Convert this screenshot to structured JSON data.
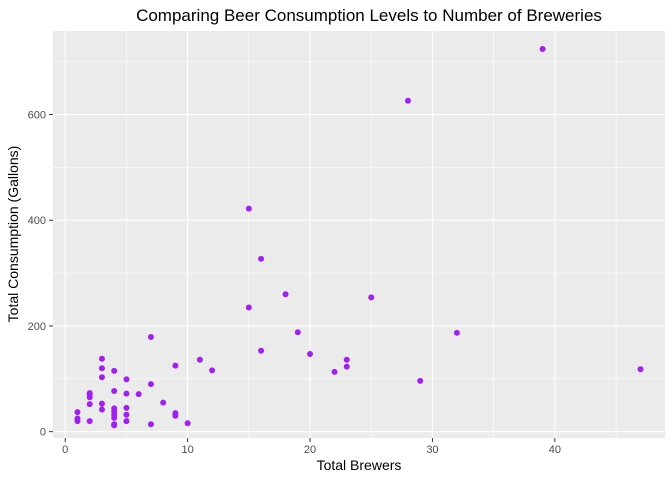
{
  "chart_data": {
    "type": "scatter",
    "title": "Comparing Beer Consumption Levels to Number of Breweries",
    "xlabel": "Total Brewers",
    "ylabel": "Total Consumption (Gallons)",
    "xlim": [
      -1,
      49
    ],
    "ylim": [
      -12,
      758
    ],
    "x_ticks": [
      0,
      10,
      20,
      30,
      40
    ],
    "y_ticks": [
      0,
      200,
      400,
      600
    ],
    "grid": true,
    "legend": "none",
    "point_color": "#A020F0",
    "panel_background": "#EBEBEB",
    "grid_color": "#FFFFFF",
    "points": [
      {
        "x": 1,
        "y": 37
      },
      {
        "x": 1,
        "y": 25
      },
      {
        "x": 1,
        "y": 20
      },
      {
        "x": 2,
        "y": 73
      },
      {
        "x": 2,
        "y": 70
      },
      {
        "x": 2,
        "y": 65
      },
      {
        "x": 2,
        "y": 52
      },
      {
        "x": 2,
        "y": 20
      },
      {
        "x": 3,
        "y": 138
      },
      {
        "x": 3,
        "y": 120
      },
      {
        "x": 3,
        "y": 103
      },
      {
        "x": 3,
        "y": 53
      },
      {
        "x": 3,
        "y": 42
      },
      {
        "x": 4,
        "y": 115
      },
      {
        "x": 4,
        "y": 77
      },
      {
        "x": 4,
        "y": 44
      },
      {
        "x": 4,
        "y": 38
      },
      {
        "x": 4,
        "y": 32
      },
      {
        "x": 4,
        "y": 26
      },
      {
        "x": 4,
        "y": 12
      },
      {
        "x": 4,
        "y": 14
      },
      {
        "x": 5,
        "y": 99
      },
      {
        "x": 5,
        "y": 72
      },
      {
        "x": 5,
        "y": 45
      },
      {
        "x": 5,
        "y": 32
      },
      {
        "x": 5,
        "y": 20
      },
      {
        "x": 6,
        "y": 71
      },
      {
        "x": 7,
        "y": 179
      },
      {
        "x": 7,
        "y": 90
      },
      {
        "x": 7,
        "y": 14
      },
      {
        "x": 8,
        "y": 55
      },
      {
        "x": 9,
        "y": 125
      },
      {
        "x": 9,
        "y": 35
      },
      {
        "x": 9,
        "y": 30
      },
      {
        "x": 10,
        "y": 16
      },
      {
        "x": 11,
        "y": 136
      },
      {
        "x": 12,
        "y": 116
      },
      {
        "x": 15,
        "y": 422
      },
      {
        "x": 15,
        "y": 235
      },
      {
        "x": 16,
        "y": 327
      },
      {
        "x": 16,
        "y": 153
      },
      {
        "x": 18,
        "y": 260
      },
      {
        "x": 19,
        "y": 188
      },
      {
        "x": 20,
        "y": 147
      },
      {
        "x": 22,
        "y": 113
      },
      {
        "x": 23,
        "y": 136
      },
      {
        "x": 23,
        "y": 123
      },
      {
        "x": 25,
        "y": 254
      },
      {
        "x": 28,
        "y": 626
      },
      {
        "x": 29,
        "y": 96
      },
      {
        "x": 32,
        "y": 187
      },
      {
        "x": 39,
        "y": 724
      },
      {
        "x": 47,
        "y": 118
      }
    ]
  }
}
